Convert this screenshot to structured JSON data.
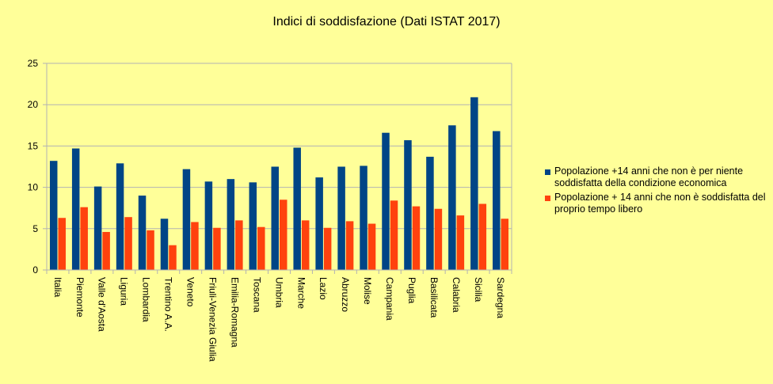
{
  "chart_data": {
    "type": "bar",
    "title": "Indici di soddisfazione (Dati ISTAT 2017)",
    "xlabel": "",
    "ylabel": "",
    "ylim": [
      0,
      25
    ],
    "yticks": [
      0,
      5,
      10,
      15,
      20,
      25
    ],
    "grid": true,
    "legend_position": "right",
    "categories": [
      "Italia",
      "Piemonte",
      "Valle d'Aosta",
      "Liguria",
      "Lombardia",
      "Trentino A.A.",
      "Veneto",
      "Friuli-Venezia Giulia",
      "Emilia-Romagna",
      "Toscana",
      "Umbria",
      "Marche",
      "Lazio",
      "Abruzzo",
      "Molise",
      "Campania",
      "Puglia",
      "Basilicata",
      "Calabria",
      "Sicilia",
      "Sardegna"
    ],
    "series": [
      {
        "name": "Popolazione +14 anni che non è per niente soddisfatta della condizione economica",
        "color": "#004586",
        "values": [
          13.2,
          14.7,
          10.1,
          12.9,
          9.0,
          6.2,
          12.2,
          10.7,
          11.0,
          10.6,
          12.5,
          14.8,
          11.2,
          12.5,
          12.6,
          16.6,
          15.7,
          13.7,
          17.5,
          20.9,
          16.8
        ]
      },
      {
        "name": "Popolazione + 14 anni che non è soddisfatta del proprio tempo libero",
        "color": "#FF420E",
        "values": [
          6.3,
          7.6,
          4.6,
          6.4,
          4.8,
          3.0,
          5.8,
          5.1,
          6.0,
          5.2,
          8.5,
          6.0,
          5.1,
          5.9,
          5.6,
          8.4,
          7.7,
          7.4,
          6.6,
          8.0,
          6.2
        ]
      }
    ]
  }
}
